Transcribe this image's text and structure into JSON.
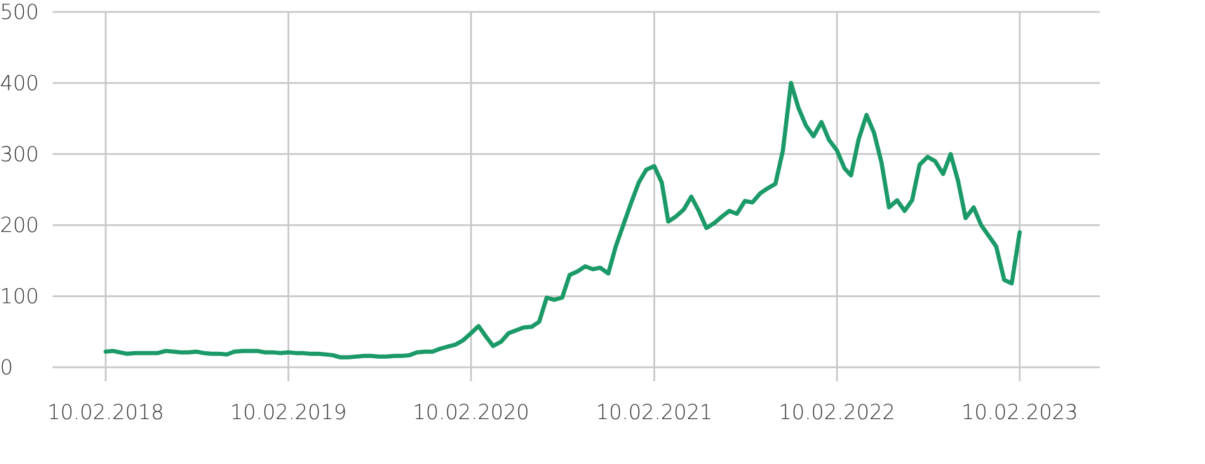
{
  "chart_data": {
    "type": "line",
    "x": [
      "10.02.2018",
      "25.02.2018",
      "10.03.2018",
      "25.03.2018",
      "10.04.2018",
      "25.04.2018",
      "10.05.2018",
      "25.05.2018",
      "10.06.2018",
      "25.06.2018",
      "10.07.2018",
      "25.07.2018",
      "10.08.2018",
      "25.08.2018",
      "10.09.2018",
      "25.09.2018",
      "10.10.2018",
      "25.10.2018",
      "10.11.2018",
      "25.11.2018",
      "10.12.2018",
      "25.12.2018",
      "10.01.2019",
      "25.01.2019",
      "10.02.2019",
      "25.02.2019",
      "10.03.2019",
      "25.03.2019",
      "10.04.2019",
      "25.04.2019",
      "10.05.2019",
      "25.05.2019",
      "10.06.2019",
      "25.06.2019",
      "10.07.2019",
      "25.07.2019",
      "10.08.2019",
      "25.08.2019",
      "10.09.2019",
      "25.09.2019",
      "10.10.2019",
      "25.10.2019",
      "10.11.2019",
      "25.11.2019",
      "10.12.2019",
      "25.12.2019",
      "10.01.2020",
      "25.01.2020",
      "10.02.2020",
      "25.02.2020",
      "10.03.2020",
      "25.03.2020",
      "10.04.2020",
      "25.04.2020",
      "10.05.2020",
      "25.05.2020",
      "10.06.2020",
      "25.06.2020",
      "10.07.2020",
      "25.07.2020",
      "10.08.2020",
      "25.08.2020",
      "10.09.2020",
      "25.09.2020",
      "10.10.2020",
      "25.10.2020",
      "10.11.2020",
      "25.11.2020",
      "10.12.2020",
      "25.12.2020",
      "10.01.2021",
      "25.01.2021",
      "10.02.2021",
      "25.02.2021",
      "10.03.2021",
      "25.03.2021",
      "10.04.2021",
      "25.04.2021",
      "10.05.2021",
      "25.05.2021",
      "10.06.2021",
      "25.06.2021",
      "10.07.2021",
      "25.07.2021",
      "10.08.2021",
      "25.08.2021",
      "10.09.2021",
      "25.09.2021",
      "10.10.2021",
      "25.10.2021",
      "10.11.2021",
      "25.11.2021",
      "10.12.2021",
      "25.12.2021",
      "10.01.2022",
      "25.01.2022",
      "10.02.2022",
      "25.02.2022",
      "10.03.2022",
      "25.03.2022",
      "10.04.2022",
      "25.04.2022",
      "10.05.2022",
      "25.05.2022",
      "10.06.2022",
      "25.06.2022",
      "10.07.2022",
      "25.07.2022",
      "10.08.2022",
      "25.08.2022",
      "10.09.2022",
      "25.09.2022",
      "10.10.2022",
      "25.10.2022",
      "10.11.2022",
      "25.11.2022",
      "10.12.2022",
      "25.12.2022",
      "10.01.2023",
      "25.01.2023",
      "10.02.2023"
    ],
    "series": [
      {
        "color": "#1b9a68",
        "values": [
          22,
          23,
          21,
          19,
          20,
          20,
          20,
          20,
          23,
          22,
          21,
          21,
          22,
          20,
          19,
          19,
          18,
          22,
          23,
          23,
          23,
          21,
          21,
          20,
          21,
          20,
          20,
          19,
          19,
          18,
          17,
          14,
          14,
          15,
          16,
          16,
          15,
          15,
          16,
          16,
          17,
          21,
          22,
          22,
          26,
          29,
          32,
          38,
          48,
          58,
          44,
          30,
          36,
          48,
          52,
          56,
          57,
          64,
          98,
          95,
          98,
          130,
          135,
          142,
          138,
          140,
          132,
          170,
          200,
          230,
          260,
          278,
          283,
          260,
          205,
          212,
          222,
          240,
          220,
          196,
          203,
          212,
          220,
          216,
          234,
          232,
          245,
          252,
          258,
          305,
          400,
          365,
          340,
          325,
          345,
          320,
          305,
          280,
          270,
          320,
          355,
          330,
          288,
          225,
          235,
          220,
          235,
          285,
          296,
          290,
          272,
          300,
          262,
          210,
          225,
          200,
          185,
          170,
          123,
          118,
          190
        ]
      }
    ],
    "xlim": [
      "27.10.2017",
      "20.07.2023"
    ],
    "xticks": [
      "10.02.2018",
      "10.02.2019",
      "10.02.2020",
      "10.02.2021",
      "10.02.2022",
      "10.02.2023"
    ],
    "ylim": [
      0,
      500
    ],
    "yticks": [
      0,
      100,
      200,
      300,
      400,
      500
    ],
    "grid": true
  }
}
